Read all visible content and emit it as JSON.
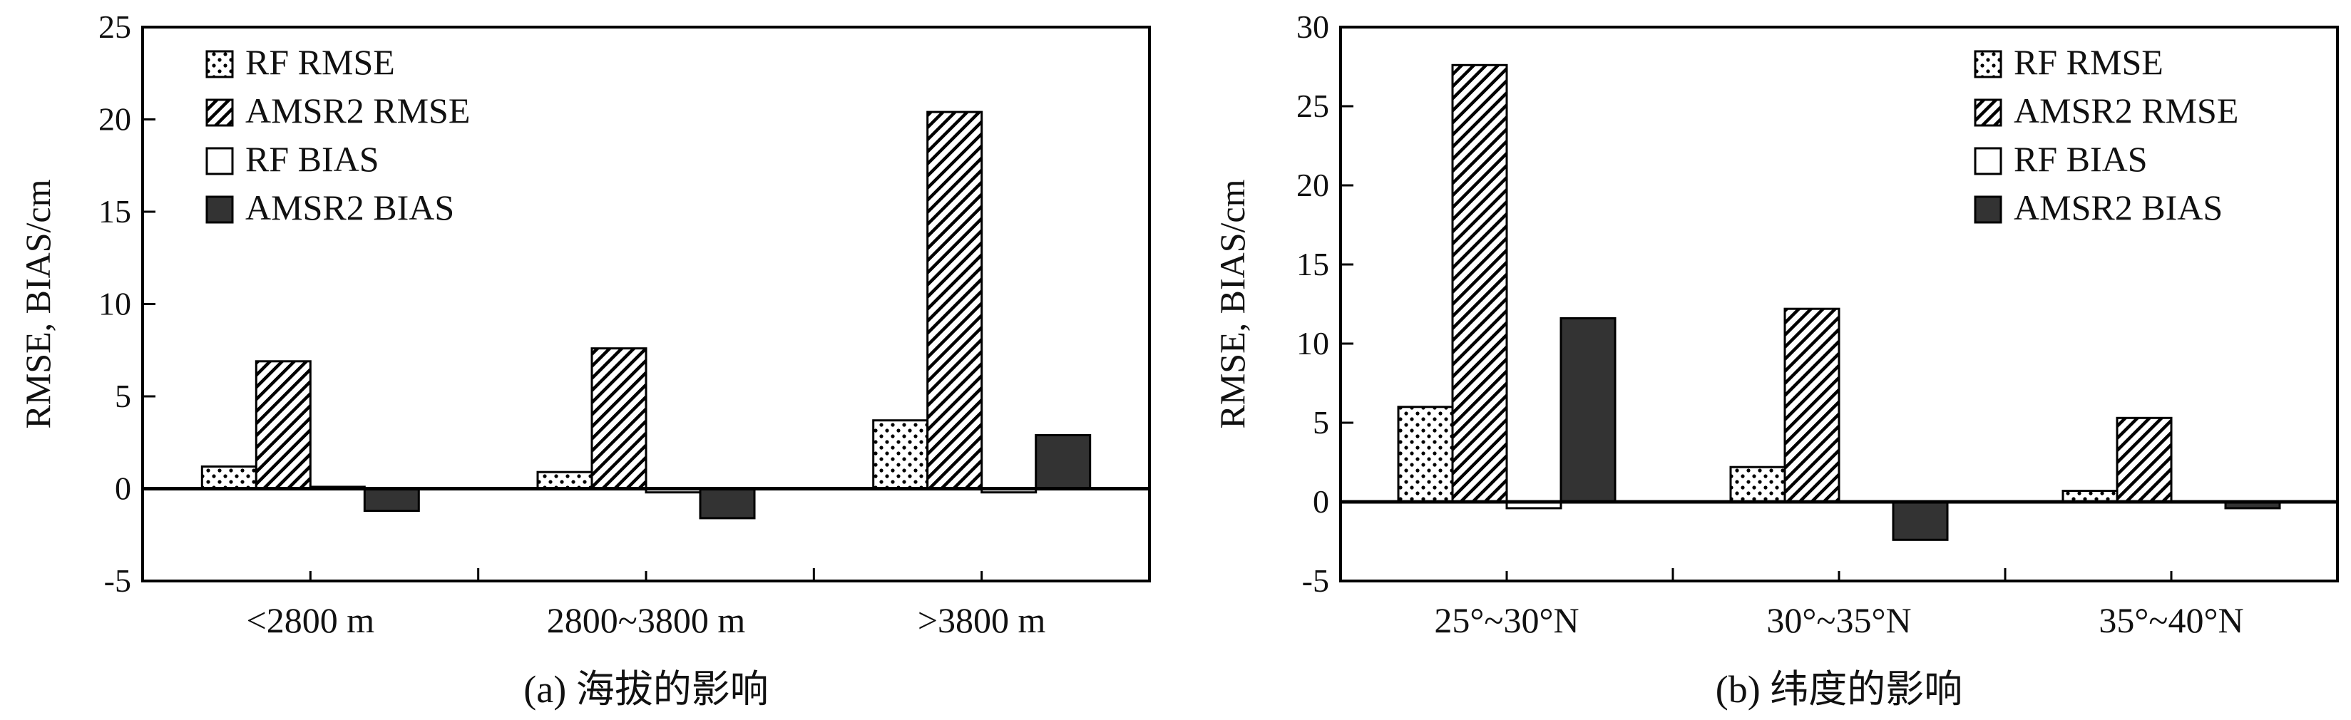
{
  "figure": {
    "series_styles": [
      {
        "name": "RF RMSE",
        "pattern": "dots",
        "fill": "#ffffff"
      },
      {
        "name": "AMSR2 RMSE",
        "pattern": "hatch",
        "fill": "#ffffff"
      },
      {
        "name": "RF BIAS",
        "pattern": "none",
        "fill": "#ffffff"
      },
      {
        "name": "AMSR2 BIAS",
        "pattern": "none",
        "fill": "#333333"
      }
    ],
    "colors": {
      "axis": "#000000",
      "dark_fill": "#333333",
      "text": "#111111"
    }
  },
  "chart_data": [
    {
      "type": "bar",
      "title": "(a) 海拔的影响",
      "xlabel": "",
      "ylabel": "RMSE, BIAS/cm",
      "ylim": [
        -5,
        25
      ],
      "yticks": [
        "-5",
        "0",
        "5",
        "10",
        "15",
        "20",
        "25"
      ],
      "categories": [
        "<2800 m",
        "2800~3800 m",
        ">3800 m"
      ],
      "legend_position": "top-left",
      "series": [
        {
          "name": "RF RMSE",
          "values": [
            1.2,
            0.9,
            3.7
          ]
        },
        {
          "name": "AMSR2 RMSE",
          "values": [
            6.9,
            7.6,
            20.4
          ]
        },
        {
          "name": "RF BIAS",
          "values": [
            0.1,
            -0.2,
            -0.2
          ]
        },
        {
          "name": "AMSR2 BIAS",
          "values": [
            -1.2,
            -1.6,
            2.9
          ]
        }
      ]
    },
    {
      "type": "bar",
      "title": "(b) 纬度的影响",
      "xlabel": "",
      "ylabel": "RMSE, BIAS/cm",
      "ylim": [
        -5,
        30
      ],
      "yticks": [
        "-5",
        "0",
        "5",
        "10",
        "15",
        "20",
        "25",
        "30"
      ],
      "categories": [
        "25°~30°N",
        "30°~35°N",
        "35°~40°N"
      ],
      "legend_position": "top-right",
      "series": [
        {
          "name": "RF RMSE",
          "values": [
            6.0,
            2.2,
            0.7
          ]
        },
        {
          "name": "AMSR2 RMSE",
          "values": [
            27.6,
            12.2,
            5.3
          ]
        },
        {
          "name": "RF BIAS",
          "values": [
            -0.4,
            0.0,
            0.0
          ]
        },
        {
          "name": "AMSR2 BIAS",
          "values": [
            11.6,
            -2.4,
            -0.4
          ]
        }
      ]
    }
  ]
}
